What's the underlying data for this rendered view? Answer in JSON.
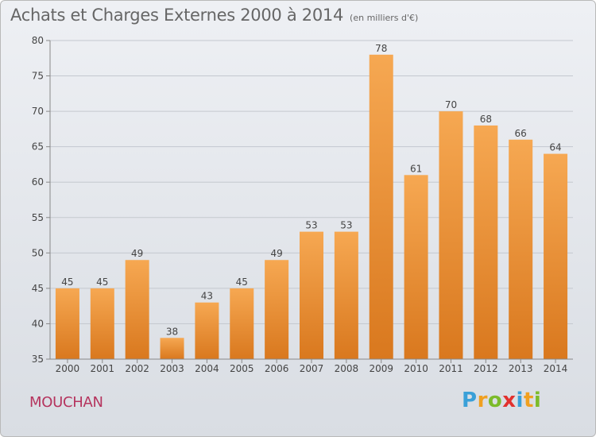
{
  "header": {
    "title": "Achats et Charges Externes 2000 à 2014",
    "unit": "(en milliers d'€)"
  },
  "commune": "MOUCHAN",
  "logo": {
    "text": "Proxiti",
    "icon": "proxiti-logo"
  },
  "colors": {
    "bar_top": "#f6a852",
    "bar_bottom": "#d9781e",
    "commune": "#b5345e",
    "title": "#666666"
  },
  "chart_data": {
    "type": "bar",
    "categories": [
      "2000",
      "2001",
      "2002",
      "2003",
      "2004",
      "2005",
      "2006",
      "2007",
      "2008",
      "2009",
      "2010",
      "2011",
      "2012",
      "2013",
      "2014"
    ],
    "values": [
      45,
      45,
      49,
      38,
      43,
      45,
      49,
      53,
      53,
      78,
      61,
      70,
      68,
      66,
      64
    ],
    "title": "Achats et Charges Externes 2000 à 2014",
    "xlabel": "",
    "ylabel": "",
    "ylim": [
      35,
      80
    ],
    "yticks": [
      35,
      40,
      45,
      50,
      55,
      60,
      65,
      70,
      75,
      80
    ],
    "grid": true,
    "legend": "none",
    "data_labels": true
  }
}
